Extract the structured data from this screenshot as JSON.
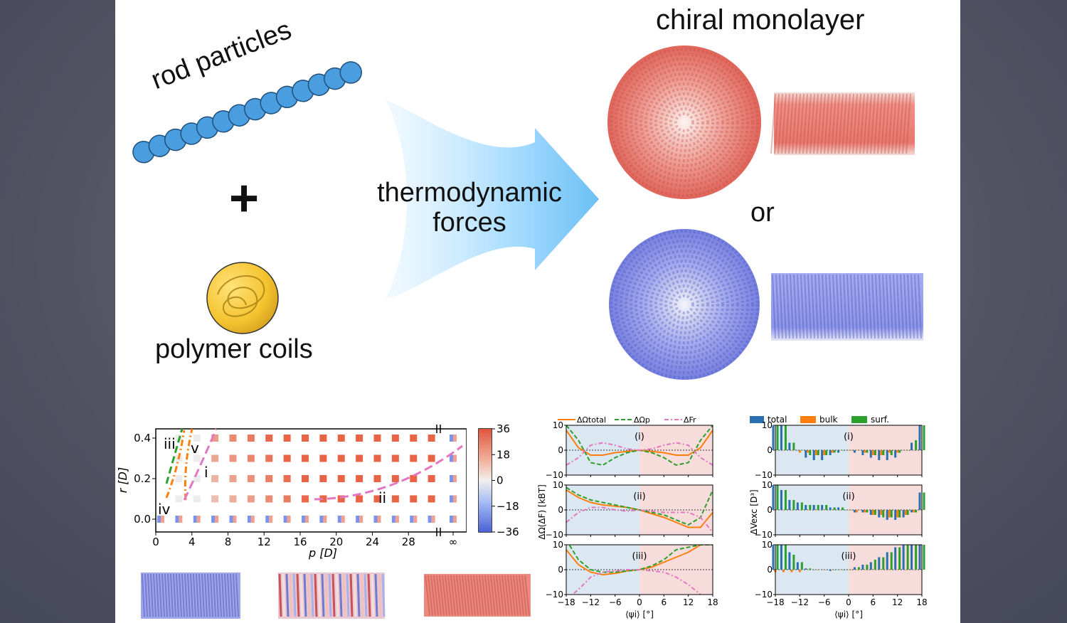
{
  "slide": {
    "rod_label": "rod particles",
    "plus_sign": "+",
    "polymer_label": "polymer coils",
    "arrow_label_line1": "thermodynamic",
    "arrow_label_line2": "forces",
    "result_title": "chiral monolayer",
    "or_label": "or"
  },
  "colors": {
    "rod_blue": "#4a9ee0",
    "polymer_yellow": "#f4c430",
    "arrow_blue": "#6cc0f5",
    "chiral_red": "#ee7b70",
    "chiral_blue": "#8d96e8"
  },
  "phase_diagram": {
    "xlabel": "p [D]",
    "ylabel": "r [D]",
    "xticks": [
      "0",
      "4",
      "8",
      "12",
      "16",
      "20",
      "24",
      "28",
      "∞"
    ],
    "yticks": [
      "0.0",
      "0.2",
      "0.4"
    ],
    "colorbar_ticks": [
      "36",
      "18",
      "0",
      "−18",
      "−36"
    ],
    "region_labels": [
      "iii",
      "v",
      "i",
      "ii",
      "iv"
    ]
  },
  "chart_data": [
    {
      "type": "line",
      "title": "",
      "legend": [
        "ΔΩtotal",
        "ΔΩp",
        "ΔFr"
      ],
      "xlabel": "⟨ψi⟩ [°]",
      "ylabel": "ΔΩ(ΔF) [kBT]",
      "xlim": [
        -18,
        18
      ],
      "ylim": [
        -10,
        10
      ],
      "xticks": [
        "−18",
        "−12",
        "−6",
        "0",
        "6",
        "12",
        "18"
      ],
      "yticks": [
        "10",
        "0",
        "−10"
      ],
      "panels": [
        {
          "label": "(i)",
          "x": [
            -18,
            -15,
            -12,
            -9,
            -6,
            -3,
            0,
            3,
            6,
            9,
            12,
            15,
            18
          ],
          "series": [
            {
              "name": "ΔΩtotal",
              "values": [
                8,
                1,
                -2,
                -2,
                -1,
                -0.5,
                0,
                -0.5,
                -1,
                -2,
                -2,
                1,
                8
              ]
            },
            {
              "name": "ΔΩp",
              "values": [
                10,
                4,
                -5,
                -6,
                -3,
                -1,
                0,
                -1,
                -3,
                -6,
                -5,
                4,
                10
              ]
            },
            {
              "name": "ΔFr",
              "values": [
                -6,
                -3,
                2,
                3,
                2,
                0.5,
                0,
                0.5,
                2,
                3,
                2,
                -3,
                -6
              ]
            }
          ]
        },
        {
          "label": "(ii)",
          "x": [
            -18,
            -15,
            -12,
            -9,
            -6,
            -3,
            0,
            3,
            6,
            9,
            12,
            15,
            18
          ],
          "series": [
            {
              "name": "ΔΩtotal",
              "values": [
                8,
                5,
                3,
                2,
                1.5,
                1,
                0,
                -1.5,
                -3,
                -5,
                -7,
                -7,
                -1
              ]
            },
            {
              "name": "ΔΩp",
              "values": [
                9,
                6,
                4,
                3,
                2,
                1,
                0,
                -1,
                -2,
                -4,
                -6,
                -3,
                8
              ]
            },
            {
              "name": "ΔFr",
              "values": [
                -5,
                -1,
                1,
                1,
                0,
                -0.5,
                0,
                -0.5,
                -1,
                -1,
                -1,
                -3,
                -9
              ]
            }
          ]
        },
        {
          "label": "(iii)",
          "x": [
            -18,
            -15,
            -12,
            -9,
            -6,
            -3,
            0,
            3,
            6,
            9,
            12,
            15,
            18
          ],
          "series": [
            {
              "name": "ΔΩtotal",
              "values": [
                8,
                2,
                -1,
                -2,
                -1.5,
                -0.5,
                0,
                1,
                3,
                5,
                7,
                10,
                12
              ]
            },
            {
              "name": "ΔΩp",
              "values": [
                12,
                4,
                0,
                -1,
                -1,
                -0.5,
                0,
                1.5,
                4,
                8,
                9,
                10,
                10
              ]
            },
            {
              "name": "ΔFr",
              "values": [
                -12,
                -8,
                -3,
                -1,
                -0.5,
                0,
                0,
                -0.5,
                -1,
                -3,
                -6,
                -10,
                -12
              ]
            }
          ]
        }
      ]
    },
    {
      "type": "bar",
      "title": "",
      "legend": [
        "total",
        "bulk",
        "surf."
      ],
      "xlabel": "⟨ψi⟩ [°]",
      "ylabel": "ΔVexc [D³]",
      "xlim": [
        -18,
        18
      ],
      "ylim": [
        -10,
        10
      ],
      "xticks": [
        "−18",
        "−12",
        "−6",
        "0",
        "6",
        "12",
        "18"
      ],
      "yticks": [
        "10",
        "0",
        "−10"
      ],
      "x": [
        -18,
        -16,
        -14,
        -12,
        -10,
        -8,
        -6,
        -4,
        -2,
        0,
        2,
        4,
        6,
        8,
        10,
        12,
        14,
        16,
        18
      ],
      "panels": [
        {
          "label": "(i)",
          "series": [
            {
              "name": "total",
              "values": [
                10,
                10,
                3,
                0,
                -3,
                -4,
                -4,
                -2,
                -1,
                0,
                -1,
                -2,
                -3,
                -4,
                -4,
                -3,
                0,
                3,
                10
              ]
            },
            {
              "name": "bulk",
              "values": [
                0,
                0,
                0,
                -1,
                -1,
                -2,
                -2,
                -1,
                0,
                0,
                0,
                -1,
                -2,
                -2,
                -1,
                -1,
                0,
                0,
                0
              ]
            },
            {
              "name": "surf.",
              "values": [
                10,
                10,
                3,
                0,
                -2,
                -2,
                -2,
                -1,
                0,
                0,
                0,
                -1,
                -2,
                -2,
                -2,
                -1,
                0,
                4,
                10
              ]
            }
          ]
        },
        {
          "label": "(ii)",
          "series": [
            {
              "name": "total",
              "values": [
                10,
                8,
                4,
                3,
                2,
                2,
                2,
                1,
                1,
                0,
                -1,
                -1,
                -2,
                -3,
                -4,
                -4,
                -3,
                -1,
                7
              ]
            },
            {
              "name": "bulk",
              "values": [
                0,
                0,
                0,
                0,
                0,
                0,
                0,
                0,
                0,
                0,
                -1,
                -1,
                -2,
                -2,
                -3,
                -3,
                -2,
                -1,
                0
              ]
            },
            {
              "name": "surf.",
              "values": [
                10,
                8,
                4,
                3,
                2,
                2,
                2,
                1,
                1,
                0,
                0,
                -1,
                -2,
                -3,
                -3,
                -3,
                -2,
                -1,
                7
              ]
            }
          ]
        },
        {
          "label": "(iii)",
          "series": [
            {
              "name": "total",
              "values": [
                10,
                10,
                7,
                3,
                0.5,
                0,
                0,
                -0.5,
                0,
                0,
                1,
                2,
                3,
                5,
                7,
                9,
                10,
                10,
                10
              ]
            },
            {
              "name": "bulk",
              "values": [
                -1,
                -1,
                -1,
                -1,
                0,
                0,
                0,
                0,
                0,
                0,
                0,
                0,
                0,
                0,
                0,
                0,
                0,
                0,
                0
              ]
            },
            {
              "name": "surf.",
              "values": [
                10,
                10,
                6,
                3,
                0.5,
                0,
                0,
                0,
                0,
                0,
                1,
                2,
                4,
                5,
                7,
                9,
                10,
                10,
                10
              ]
            }
          ]
        }
      ]
    }
  ]
}
